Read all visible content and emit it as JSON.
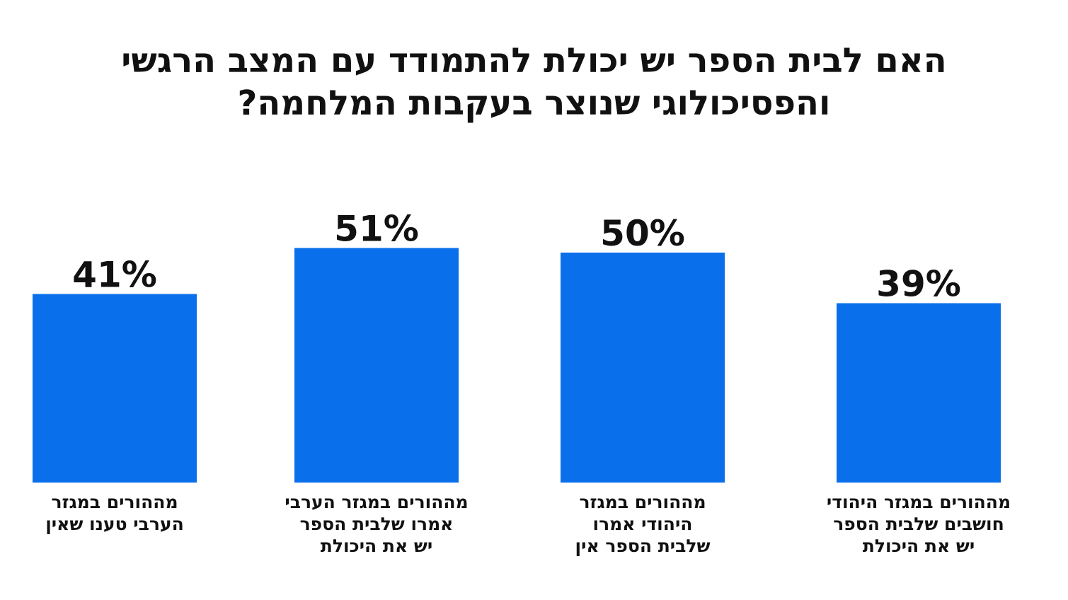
{
  "title": "האם לבית הספר יש יכולת להתמודד עם המצב הרגשי והפסיכולוגי שנוצר בעקבות המלחמה?",
  "chart_data": {
    "type": "bar",
    "categories": [
      "מההורים במגזר\nהערבי טענו שאין",
      "מההורים במגזר הערבי\nאמרו שלבית הספר\nיש את היכולת",
      "מההורים במגזר\nהיהודי אמרו\nשלבית הספר אין",
      "מההורים במגזר היהודי\nחושבים שלבית הספר\nיש את היכולת"
    ],
    "values": [
      41,
      51,
      50,
      39
    ],
    "value_labels": [
      "41%",
      "51%",
      "50%",
      "39%"
    ],
    "ylim": [
      0,
      100
    ],
    "grid": false,
    "bar_color": "#0A6FEA"
  }
}
